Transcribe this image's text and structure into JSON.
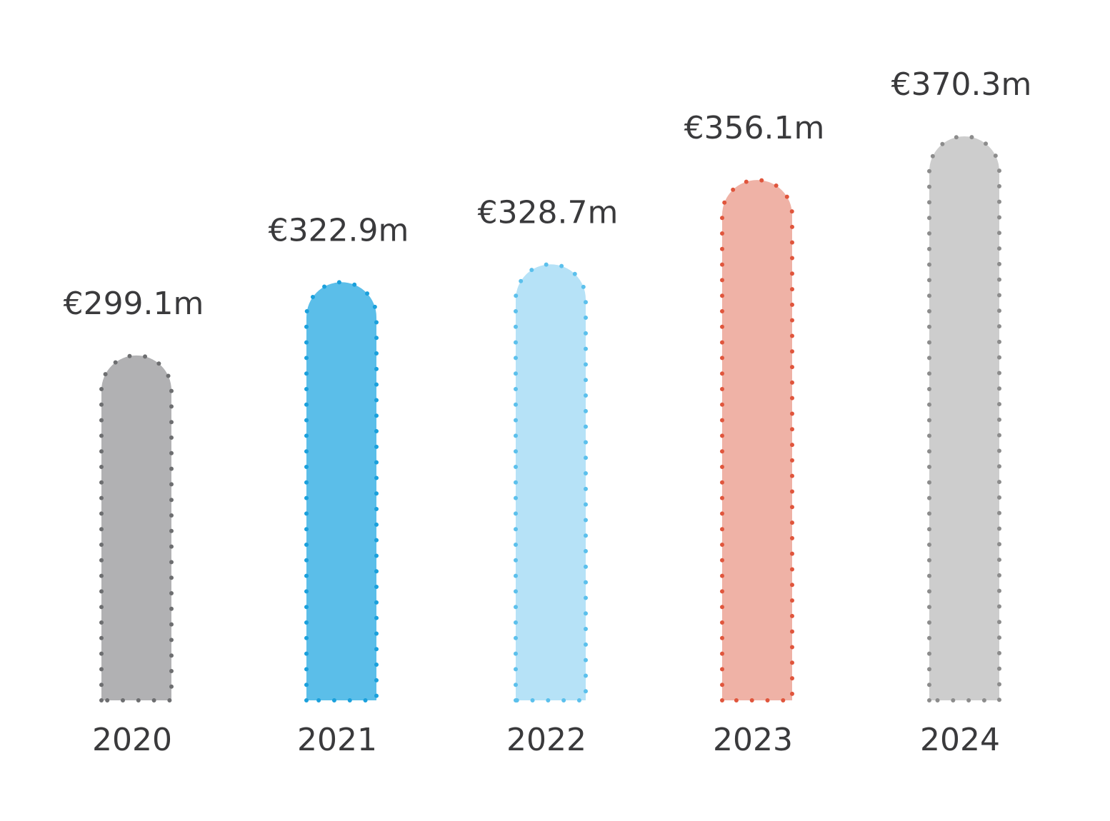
{
  "chart_data": {
    "type": "bar",
    "title": "",
    "xlabel": "",
    "ylabel": "",
    "categories": [
      "2020",
      "2021",
      "2022",
      "2023",
      "2024"
    ],
    "values": [
      299.1,
      322.9,
      328.7,
      356.1,
      370.3
    ],
    "value_labels": [
      "€299.1m",
      "€322.9m",
      "€328.7m",
      "€356.1m",
      "€370.3m"
    ],
    "unit": "€m",
    "ylim": [
      187,
      380
    ],
    "grid": false,
    "legend": "none",
    "colors": {
      "fill": [
        "#b1b1b3",
        "#5bbee9",
        "#b6e2f7",
        "#efb2a6",
        "#cdcdcd"
      ],
      "dots": [
        "#6d6e70",
        "#1aa0dc",
        "#5bc0ec",
        "#e0553c",
        "#8c8c8c"
      ]
    }
  }
}
